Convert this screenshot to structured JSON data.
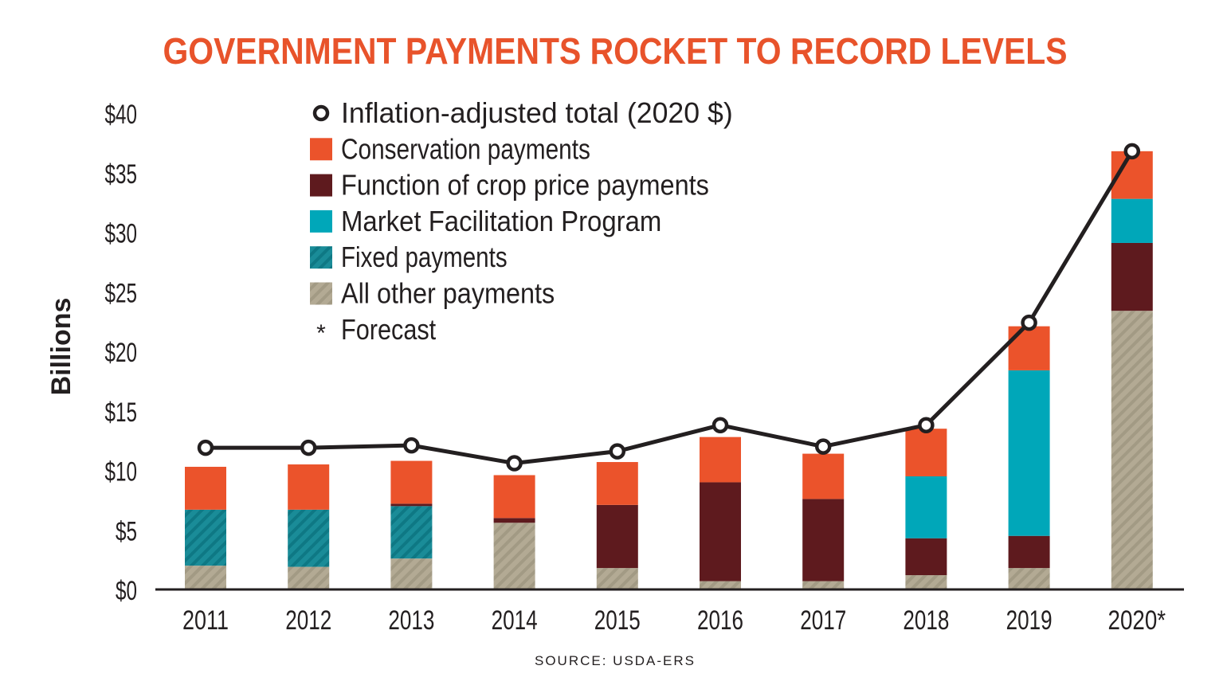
{
  "chart_data": {
    "type": "bar",
    "stacked": true,
    "title": "GOVERNMENT PAYMENTS ROCKET TO RECORD LEVELS",
    "ylabel": "Billions",
    "xlabel": "",
    "source": "SOURCE: USDA-ERS",
    "ylim": [
      0,
      40
    ],
    "yticks": [
      0,
      5,
      10,
      15,
      20,
      25,
      30,
      35,
      40
    ],
    "ytick_labels": [
      "$0",
      "$5",
      "$10",
      "$15",
      "$20",
      "$25",
      "$30",
      "$35",
      "$40"
    ],
    "grid": false,
    "legend_position": "top-left",
    "categories": [
      "2011",
      "2012",
      "2013",
      "2014",
      "2015",
      "2016",
      "2017",
      "2018",
      "2019",
      "2020*"
    ],
    "series": [
      {
        "name": "All other payments",
        "color": "#B3AA94",
        "pattern": "hatched",
        "values": [
          2.0,
          1.9,
          2.6,
          5.6,
          1.8,
          0.7,
          0.7,
          1.2,
          1.8,
          23.4
        ]
      },
      {
        "name": "Fixed payments",
        "color": "#1A8C98",
        "pattern": "hatched",
        "values": [
          4.7,
          4.8,
          4.4,
          0,
          0,
          0,
          0,
          0,
          0,
          0
        ]
      },
      {
        "name": "Function of crop price payments",
        "color": "#5E1A1E",
        "values": [
          0,
          0,
          0.2,
          0.4,
          5.3,
          8.3,
          6.9,
          3.1,
          2.7,
          5.7
        ]
      },
      {
        "name": "Market Facilitation Program",
        "color": "#00A7B9",
        "values": [
          0,
          0,
          0,
          0,
          0,
          0,
          0,
          5.2,
          13.9,
          3.7
        ]
      },
      {
        "name": "Conservation payments",
        "color": "#EB532B",
        "values": [
          3.6,
          3.8,
          3.6,
          3.6,
          3.6,
          3.8,
          3.8,
          4.0,
          3.7,
          4.0
        ]
      }
    ],
    "line": {
      "name": "Inflation-adjusted total (2020 $)",
      "color": "#231F20",
      "values": [
        11.9,
        11.9,
        12.1,
        10.6,
        11.6,
        13.8,
        12.0,
        13.8,
        22.4,
        36.8
      ]
    },
    "legend": [
      {
        "label": "Inflation-adjusted total (2020 $)",
        "marker": "circle"
      },
      {
        "label": "Conservation payments",
        "color": "#EB532B"
      },
      {
        "label": "Function of crop price payments",
        "color": "#5E1A1E"
      },
      {
        "label": "Market Facilitation Program",
        "color": "#00A7B9"
      },
      {
        "label": "Fixed payments",
        "color": "#1A8C98",
        "pattern": "hatched"
      },
      {
        "label": "All other payments",
        "color": "#B3AA94",
        "pattern": "hatched"
      },
      {
        "label": "Forecast",
        "marker": "*"
      }
    ],
    "title_color": "#E8532B"
  }
}
